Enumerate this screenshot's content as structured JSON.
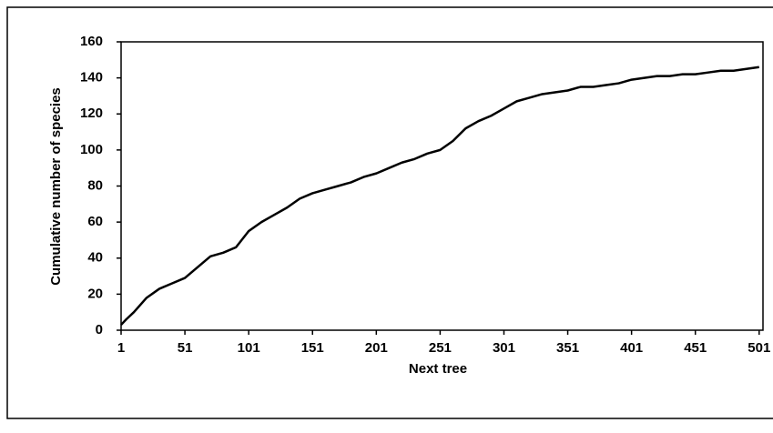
{
  "chart_data": {
    "type": "line",
    "x_label": "Next tree",
    "y_label": "Cumulative number of species",
    "x": [
      1,
      5,
      11,
      21,
      31,
      41,
      51,
      61,
      71,
      81,
      91,
      101,
      111,
      121,
      131,
      141,
      151,
      161,
      171,
      181,
      191,
      201,
      211,
      221,
      231,
      241,
      251,
      261,
      271,
      281,
      291,
      301,
      311,
      321,
      331,
      341,
      351,
      361,
      371,
      381,
      391,
      401,
      411,
      421,
      431,
      441,
      451,
      461,
      471,
      481,
      491,
      501
    ],
    "series": [
      {
        "color": "#000000",
        "values": [
          3,
          6,
          10,
          18,
          23,
          26,
          29,
          35,
          41,
          43,
          46,
          55,
          60,
          64,
          68,
          73,
          76,
          78,
          80,
          82,
          85,
          87,
          90,
          93,
          95,
          98,
          100,
          105,
          112,
          116,
          119,
          123,
          127,
          129,
          131,
          132,
          133,
          135,
          135,
          136,
          137,
          139,
          140,
          141,
          141,
          142,
          142,
          143,
          144,
          144,
          145,
          146
        ]
      }
    ],
    "xlim": [
      1,
      504
    ],
    "xticks": [
      1,
      51,
      101,
      151,
      201,
      251,
      301,
      351,
      401,
      451,
      501
    ],
    "ylim": [
      0,
      160
    ],
    "yticks": [
      0,
      20,
      40,
      60,
      80,
      100,
      120,
      140,
      160
    ]
  }
}
